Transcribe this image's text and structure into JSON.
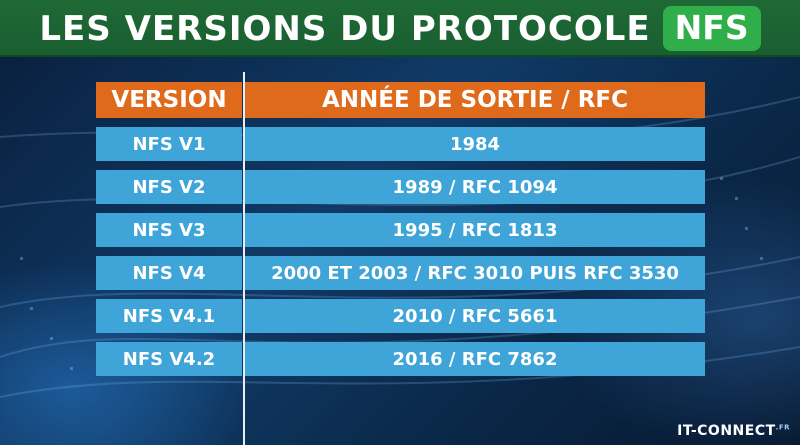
{
  "header": {
    "title": "LES VERSIONS DU PROTOCOLE",
    "badge": "NFS"
  },
  "table": {
    "columns": [
      "VERSION",
      "ANNÉE DE SORTIE / RFC"
    ],
    "rows": [
      [
        "NFS V1",
        "1984"
      ],
      [
        "NFS V2",
        "1989 / RFC 1094"
      ],
      [
        "NFS V3",
        "1995 / RFC 1813"
      ],
      [
        "NFS V4",
        "2000 ET 2003  / RFC 3010 PUIS RFC 3530"
      ],
      [
        "NFS V4.1",
        "2010 / RFC 5661"
      ],
      [
        "NFS V4.2",
        "2016 / RFC 7862"
      ]
    ]
  },
  "footer": {
    "logo": "IT-CONNECT",
    "logo_sup": ".FR"
  },
  "colors": {
    "header_bg": "#1e6a36",
    "badge_bg": "#2fae4a",
    "column_header_bg": "#e06a1b",
    "row_bg": "#3fa4d8"
  }
}
